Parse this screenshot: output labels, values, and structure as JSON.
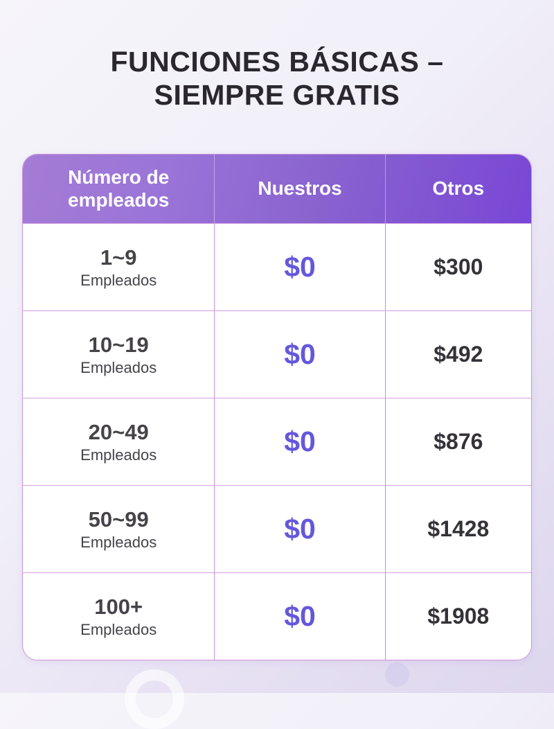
{
  "page": {
    "title_line1": "FUNCIONES BÁSICAS –",
    "title_line2": "SIEMPRE GRATIS"
  },
  "table": {
    "headers": [
      {
        "label": "Número de empleados"
      },
      {
        "label": "Nuestros"
      },
      {
        "label": "Otros"
      }
    ],
    "rows": [
      {
        "range": "1~9",
        "unit": "Empleados",
        "ours": "$0",
        "others": "$300"
      },
      {
        "range": "10~19",
        "unit": "Empleados",
        "ours": "$0",
        "others": "$492"
      },
      {
        "range": "20~49",
        "unit": "Empleados",
        "ours": "$0",
        "others": "$876"
      },
      {
        "range": "50~99",
        "unit": "Empleados",
        "ours": "$0",
        "others": "$1428"
      },
      {
        "range": "100+",
        "unit": "Empleados",
        "ours": "$0",
        "others": "$1908"
      }
    ]
  },
  "colors": {
    "header_gradient_start": "#a47cd5",
    "header_gradient_end": "#7847d6",
    "header_text": "#ffffff",
    "free_price": "#6557dc",
    "other_price_text": "#343238",
    "body_text": "#454349",
    "grid_line": "#c88dd9",
    "outer_border": "#c994dc",
    "title_text": "#2a272e",
    "background_top": "#f6f5fa",
    "background_bottom": "#ddd6ee"
  },
  "chart_data": {
    "type": "table",
    "title": "FUNCIONES BÁSICAS – SIEMPRE GRATIS",
    "categories": [
      "1~9 Empleados",
      "10~19 Empleados",
      "20~49 Empleados",
      "50~99 Empleados",
      "100+ Empleados"
    ],
    "series": [
      {
        "name": "Nuestros",
        "values": [
          0,
          0,
          0,
          0,
          0
        ]
      },
      {
        "name": "Otros",
        "values": [
          300,
          492,
          876,
          1428,
          1908
        ]
      }
    ],
    "layout": {
      "columns": [
        "Número de empleados",
        "Nuestros",
        "Otros"
      ],
      "grid": true
    }
  }
}
